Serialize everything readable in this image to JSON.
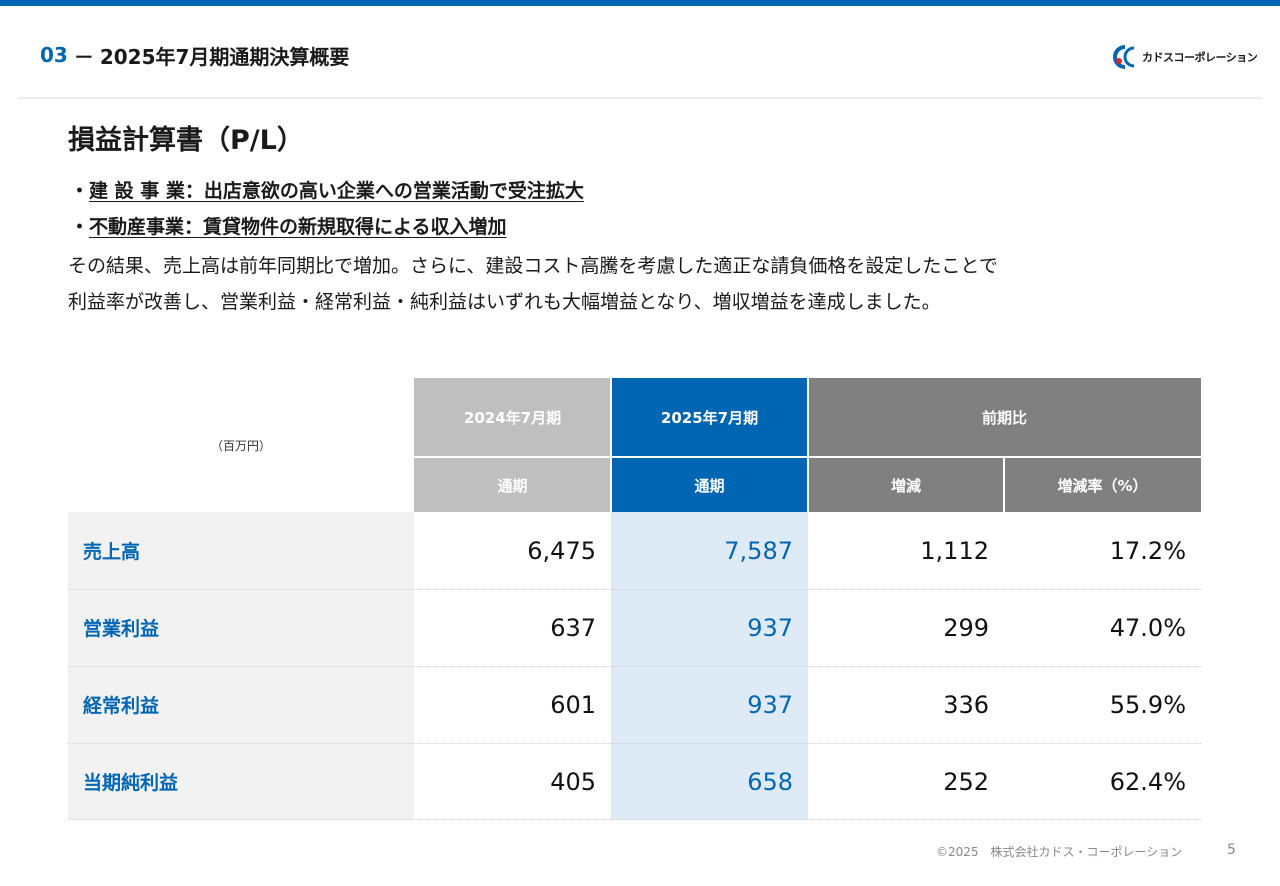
{
  "header": {
    "section_number": "03",
    "dash": "－",
    "section_title": "2025年7月期通期決算概要"
  },
  "logo": {
    "text": "カドスコーポレーション",
    "colors": {
      "blue": "#0066b3",
      "red": "#d9252a"
    }
  },
  "page_title": "損益計算書（P/L）",
  "bullets": [
    {
      "prefix": "・",
      "text": "建 設 事 業：出店意欲の高い企業への営業活動で受注拡大"
    },
    {
      "prefix": "・",
      "text": "不動産事業：賃貸物件の新規取得による収入増加"
    }
  ],
  "summary_lines": [
    "その結果、売上高は前年同期比で増加。さらに、建設コスト高騰を考慮した適正な請負価格を設定したことで",
    "利益率が改善し、営業利益・経常利益・純利益はいずれも大幅増益となり、増収増益を達成しました。"
  ],
  "table": {
    "unit": "（百万円）",
    "headers": {
      "prev_year": "2024年7月期",
      "curr_year": "2025年7月期",
      "yoy": "前期比",
      "prev_sub": "通期",
      "curr_sub": "通期",
      "diff": "増減",
      "rate": "増減率（%）"
    },
    "rows": [
      {
        "label": "売上高",
        "prev": "6,475",
        "curr": "7,587",
        "diff": "1,112",
        "rate": "17.2%"
      },
      {
        "label": "営業利益",
        "prev": "637",
        "curr": "937",
        "diff": "299",
        "rate": "47.0%"
      },
      {
        "label": "経常利益",
        "prev": "601",
        "curr": "937",
        "diff": "336",
        "rate": "55.9%"
      },
      {
        "label": "当期純利益",
        "prev": "405",
        "curr": "658",
        "diff": "252",
        "rate": "62.4%"
      }
    ]
  },
  "footer": {
    "copyright": "©2025　株式会社カドス・コーポレーション",
    "page_number": "5"
  }
}
